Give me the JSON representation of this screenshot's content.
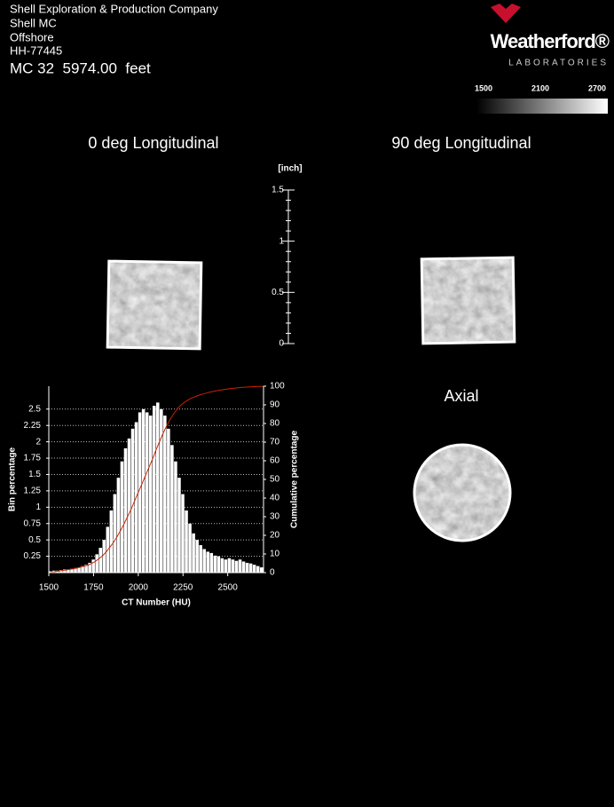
{
  "header": {
    "company": "Shell Exploration & Production Company",
    "well": "Shell MC",
    "location": "Offshore",
    "sample_id": "HH-77445",
    "depth_line": "MC 32  5974.00  feet"
  },
  "logo": {
    "brand": "Weatherford®",
    "sub": "LABORATORIES"
  },
  "colorbar": {
    "lim": [
      1500,
      2700
    ],
    "ticks": [
      1500,
      2100,
      2700
    ]
  },
  "panels": [
    {
      "title": "0 deg Longitudinal"
    },
    {
      "title": "90 deg Longitudinal"
    },
    {
      "title": "Axial"
    }
  ],
  "scale_bar": {
    "unit_label": "[inch]",
    "lim": [
      0,
      1.5
    ],
    "ticks": [
      0,
      0.5,
      1,
      1.5
    ],
    "minor_ticks": [
      0.1,
      0.2,
      0.3,
      0.4,
      0.6,
      0.7,
      0.8,
      0.9,
      1.1,
      1.2,
      1.3,
      1.4
    ]
  },
  "chart_data": {
    "type": "histogram",
    "xlabel": "CT Number (HU)",
    "ylabel": "Bin percentage",
    "y2label": "Cumulative percentage",
    "bins": [
      1500,
      1520,
      1540,
      1560,
      1580,
      1600,
      1620,
      1640,
      1660,
      1680,
      1700,
      1720,
      1740,
      1760,
      1780,
      1800,
      1820,
      1840,
      1860,
      1880,
      1900,
      1920,
      1940,
      1960,
      1980,
      2000,
      2020,
      2040,
      2060,
      2080,
      2100,
      2120,
      2140,
      2160,
      2180,
      2200,
      2220,
      2240,
      2260,
      2280,
      2300,
      2320,
      2340,
      2360,
      2380,
      2400,
      2420,
      2440,
      2460,
      2480,
      2500,
      2520,
      2540,
      2560,
      2580,
      2600,
      2620,
      2640,
      2660,
      2680,
      2700
    ],
    "values": [
      0.02,
      0.03,
      0.03,
      0.04,
      0.05,
      0.05,
      0.06,
      0.07,
      0.08,
      0.1,
      0.12,
      0.15,
      0.2,
      0.28,
      0.38,
      0.5,
      0.7,
      0.95,
      1.2,
      1.45,
      1.7,
      1.9,
      2.05,
      2.2,
      2.3,
      2.45,
      2.5,
      2.45,
      2.4,
      2.55,
      2.6,
      2.5,
      2.4,
      2.2,
      1.95,
      1.7,
      1.45,
      1.2,
      0.95,
      0.75,
      0.6,
      0.5,
      0.42,
      0.36,
      0.32,
      0.3,
      0.26,
      0.25,
      0.22,
      0.2,
      0.22,
      0.2,
      0.18,
      0.2,
      0.17,
      0.15,
      0.14,
      0.12,
      0.1,
      0.08
    ],
    "color": "#ffffff",
    "cumulative": {
      "color": "#cc2200",
      "axis": "y2",
      "values": [
        0.3,
        0.6,
        0.9,
        1.2,
        1.5,
        1.8,
        2.1,
        2.5,
        3,
        3.5,
        4,
        5,
        6,
        7.5,
        9,
        11,
        13.5,
        16,
        19,
        22.5,
        26,
        30,
        34,
        38.5,
        43,
        47.5,
        52,
        56.5,
        61,
        66,
        70.5,
        75,
        79,
        82.5,
        85.5,
        88,
        90,
        91.5,
        92.7,
        93.7,
        94.5,
        95.2,
        95.8,
        96.3,
        96.8,
        97.2,
        97.6,
        97.9,
        98.2,
        98.5,
        98.8,
        99,
        99.2,
        99.4,
        99.5,
        99.6,
        99.7,
        99.8,
        99.9,
        100
      ]
    },
    "xlim": [
      1500,
      2700
    ],
    "xticks": [
      1500,
      1750,
      2000,
      2250,
      2500
    ],
    "ylim": [
      0,
      2.85
    ],
    "yticks": [
      0.25,
      0.5,
      0.75,
      1,
      1.25,
      1.5,
      1.75,
      2,
      2.25,
      2.5
    ],
    "y2lim": [
      0,
      100
    ],
    "y2ticks": [
      0,
      10,
      20,
      30,
      40,
      50,
      60,
      70,
      80,
      90,
      100
    ],
    "grid": true
  }
}
